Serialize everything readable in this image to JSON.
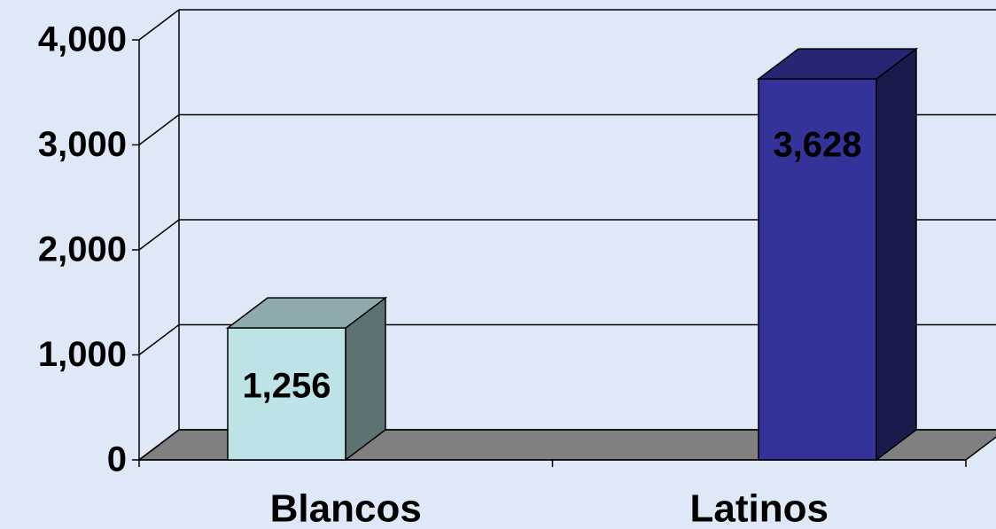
{
  "chart_data": {
    "type": "bar3d",
    "categories": [
      "Blancos",
      "Latinos"
    ],
    "values": [
      1256,
      3628
    ],
    "value_labels": [
      "1,256",
      "3,628"
    ],
    "colors": [
      "#bde3e6",
      "#333399"
    ],
    "ylim": [
      0,
      4000
    ],
    "yticks": [
      0,
      {
        "value": 1000,
        "label": "1,000"
      },
      {
        "value": 2000,
        "label": "2,000"
      },
      {
        "value": 3000,
        "label": "3,000"
      },
      {
        "value": 4000,
        "label": "4,000"
      }
    ],
    "grid": true
  }
}
